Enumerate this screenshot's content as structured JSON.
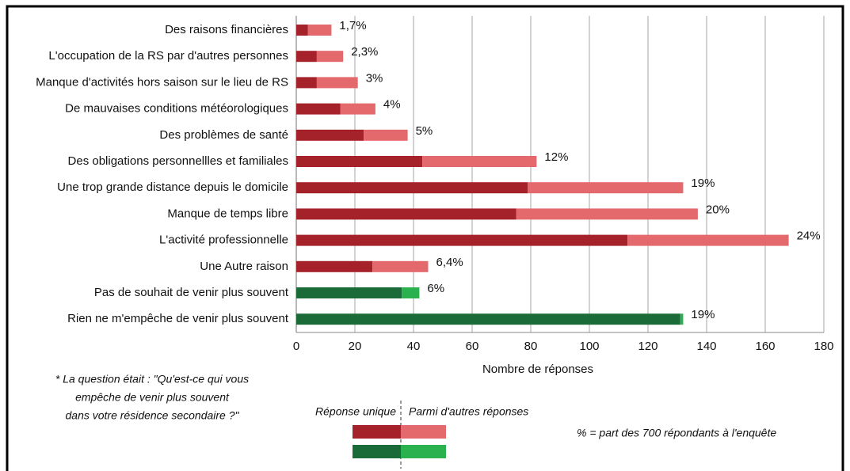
{
  "chart_data": {
    "type": "stacked-barh",
    "categories": [
      "Des raisons financières",
      "L'occupation de la RS par d'autres personnes",
      "Manque d'activités hors saison sur le lieu de RS",
      "De mauvaises conditions météorologiques",
      "Des problèmes de santé",
      "Des obligations personnellles et familiales",
      "Une trop grande distance depuis le domicile",
      "Manque de temps libre",
      "L'activité professionnelle",
      "Une Autre raison",
      "Pas de souhait de venir plus souvent",
      "Rien ne m'empêche de venir plus souvent"
    ],
    "series": [
      {
        "name": "Réponse unique",
        "colors": [
          "#a6222a",
          "#a6222a",
          "#a6222a",
          "#a6222a",
          "#a6222a",
          "#a6222a",
          "#a6222a",
          "#a6222a",
          "#a6222a",
          "#a6222a",
          "#1b6b38",
          "#1b6b38"
        ],
        "values": [
          4,
          7,
          7,
          15,
          23,
          43,
          79,
          75,
          113,
          26,
          36,
          131
        ]
      },
      {
        "name": "Parmi d'autres réponses",
        "colors": [
          "#e4696d",
          "#e4696d",
          "#e4696d",
          "#e4696d",
          "#e4696d",
          "#e4696d",
          "#e4696d",
          "#e4696d",
          "#e4696d",
          "#e4696d",
          "#2bb24e",
          "#2bb24e"
        ],
        "values": [
          8,
          9,
          14,
          12,
          15,
          39,
          53,
          62,
          55,
          19,
          6,
          1
        ]
      }
    ],
    "shares": [
      1.7,
      2.3,
      3,
      4,
      5,
      12,
      19,
      20,
      24,
      6.4,
      6,
      19
    ],
    "share_labels": [
      "1,7%",
      "2,3%",
      "3%",
      "4%",
      "5%",
      "12%",
      "19%",
      "20%",
      "24%",
      "6,4%",
      "6%",
      "19%"
    ],
    "xlim": [
      0,
      180
    ],
    "xticks": [
      0,
      20,
      40,
      60,
      80,
      100,
      120,
      140,
      160,
      180
    ],
    "xlabel": "Nombre de réponses",
    "grid": true,
    "footnote": [
      "* La question était : \"Qu'est-ce qui vous",
      "empêche de venir plus souvent",
      "dans votre résidence secondaire ?\""
    ],
    "note": "% = part des 700 répondants à l'enquête"
  }
}
